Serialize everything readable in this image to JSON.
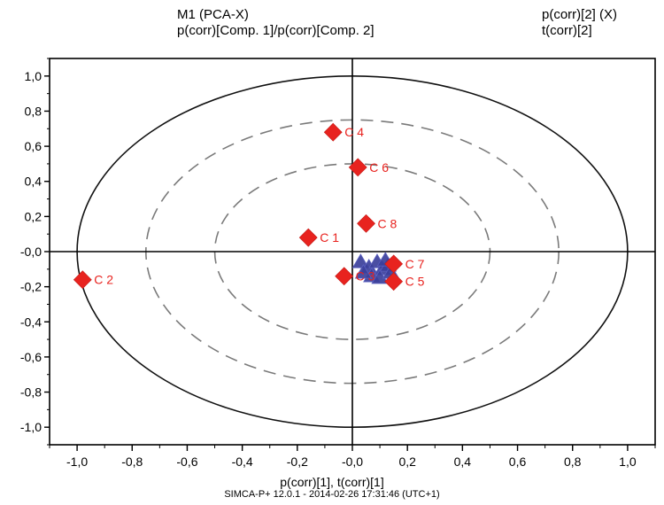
{
  "chart_data": {
    "type": "scatter",
    "title": "M1 (PCA-X)",
    "subtitle": "p(corr)[Comp. 1]/p(corr)[Comp. 2]",
    "legend": [
      "p(corr)[2] (X)",
      "t(corr)[2]"
    ],
    "xlabel": "p(corr)[1], t(corr)[1]",
    "footer": "SIMCA-P+ 12.0.1 - 2014-02-26 17:31:46 (UTC+1)",
    "xlim": [
      -1.1,
      1.1
    ],
    "ylim": [
      -1.1,
      1.1
    ],
    "x_ticks": [
      "-1,0",
      "-0,8",
      "-0,6",
      "-0,4",
      "-0,2",
      "-0,0",
      "0,2",
      "0,4",
      "0,6",
      "0,8",
      "1,0"
    ],
    "y_ticks": [
      "1,0",
      "0,8",
      "0,6",
      "0,4",
      "0,2",
      "-0,0",
      "-0,2",
      "-0,4",
      "-0,6",
      "-0,8",
      "-1,0"
    ],
    "x_tick_values": [
      -1.0,
      -0.8,
      -0.6,
      -0.4,
      -0.2,
      0.0,
      0.2,
      0.4,
      0.6,
      0.8,
      1.0
    ],
    "y_tick_values": [
      1.0,
      0.8,
      0.6,
      0.4,
      0.2,
      0.0,
      -0.2,
      -0.4,
      -0.6,
      -0.8,
      -1.0
    ],
    "ellipses": [
      {
        "radius": 1.0,
        "style": "solid"
      },
      {
        "radius": 0.75,
        "style": "dashed"
      },
      {
        "radius": 0.5,
        "style": "dashed"
      }
    ],
    "series": [
      {
        "name": "p(corr)[2] (X)",
        "marker": "diamond",
        "color": "#e8231f",
        "points": [
          {
            "label": "C 4",
            "x": -0.07,
            "y": 0.68
          },
          {
            "label": "C 6",
            "x": 0.02,
            "y": 0.48
          },
          {
            "label": "C 8",
            "x": 0.05,
            "y": 0.16
          },
          {
            "label": "C 1",
            "x": -0.16,
            "y": 0.08
          },
          {
            "label": "C 2",
            "x": -0.98,
            "y": -0.16
          },
          {
            "label": "C 3",
            "x": -0.03,
            "y": -0.14
          },
          {
            "label": "C 7",
            "x": 0.15,
            "y": -0.07
          },
          {
            "label": "C 5",
            "x": 0.15,
            "y": -0.17
          }
        ]
      },
      {
        "name": "t(corr)[2]",
        "marker": "triangle",
        "color": "#3b3f9a",
        "points": [
          {
            "label": "",
            "x": 0.03,
            "y": -0.06
          },
          {
            "label": "",
            "x": 0.06,
            "y": -0.09
          },
          {
            "label": "",
            "x": 0.09,
            "y": -0.06
          },
          {
            "label": "",
            "x": 0.11,
            "y": -0.1
          },
          {
            "label": "",
            "x": 0.07,
            "y": -0.14
          },
          {
            "label": "",
            "x": 0.13,
            "y": -0.08
          },
          {
            "label": "",
            "x": 0.1,
            "y": -0.15
          },
          {
            "label": "",
            "x": 0.14,
            "y": -0.12
          },
          {
            "label": "",
            "x": 0.04,
            "y": -0.12
          },
          {
            "label": "",
            "x": 0.12,
            "y": -0.05
          }
        ]
      }
    ]
  }
}
